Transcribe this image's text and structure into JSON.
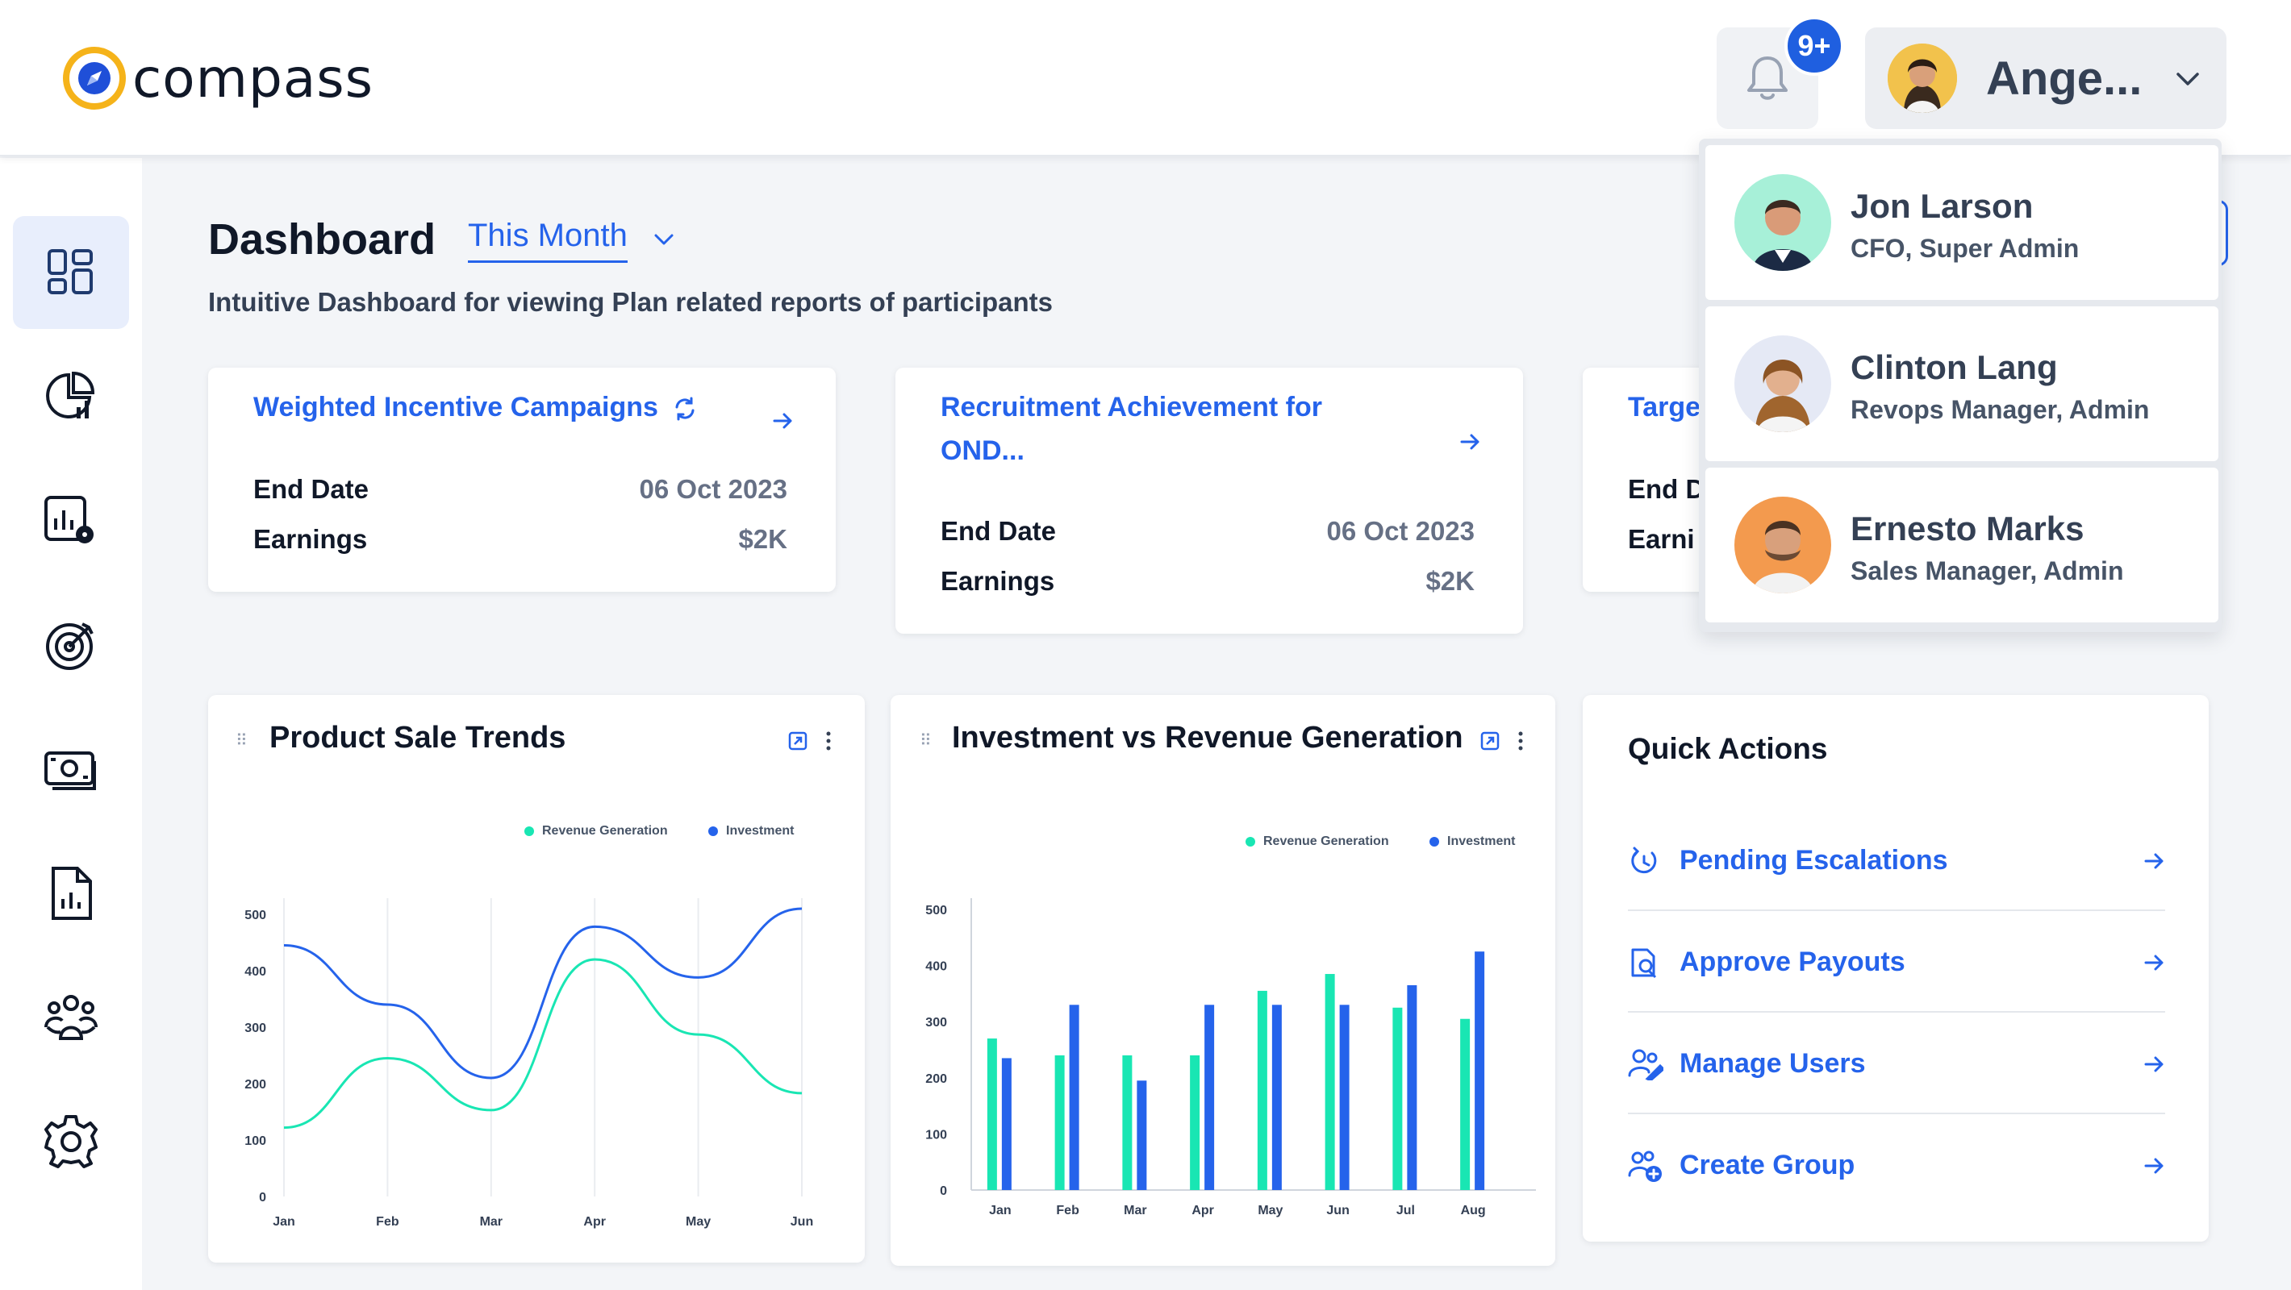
{
  "app": {
    "logo_text": "compass",
    "brand_color": "#2563eb",
    "accent_color": "#19e6b3"
  },
  "header": {
    "notifications_badge": "9+",
    "user_name": "Ange..."
  },
  "sidebar": {
    "items": [
      {
        "name": "dashboard",
        "icon": "dashboard-icon",
        "active": true
      },
      {
        "name": "reports",
        "icon": "pie-chart-icon"
      },
      {
        "name": "analytics-settings",
        "icon": "chart-gear-icon"
      },
      {
        "name": "goals",
        "icon": "target-icon"
      },
      {
        "name": "payouts",
        "icon": "money-icon"
      },
      {
        "name": "documents",
        "icon": "document-chart-icon"
      },
      {
        "name": "users",
        "icon": "team-icon"
      },
      {
        "name": "settings",
        "icon": "gear-icon"
      }
    ]
  },
  "page": {
    "title": "Dashboard",
    "period": "This Month",
    "subtitle": "Intuitive Dashboard for viewing Plan related reports of participants"
  },
  "campaigns": [
    {
      "title": "Weighted Incentive Campaigns",
      "end_date_label": "End Date",
      "end_date": "06 Oct 2023",
      "earnings_label": "Earnings",
      "earnings": "$2K"
    },
    {
      "title_line1": "Recruitment Achievement for",
      "title_line2": "OND...",
      "end_date_label": "End Date",
      "end_date": "06 Oct 2023",
      "earnings_label": "Earnings",
      "earnings": "$2K"
    },
    {
      "title": "Targe",
      "end_date_label": "End D",
      "earnings_label": "Earni"
    }
  ],
  "product_sale_trends": {
    "title": "Product Sale Trends",
    "chart_data": {
      "type": "line",
      "categories": [
        "Jan",
        "Feb",
        "Mar",
        "Apr",
        "May",
        "Jun"
      ],
      "series": [
        {
          "name": "Revenue Generation",
          "color": "#19e6b3",
          "values": [
            122,
            245,
            153,
            420,
            287,
            183
          ]
        },
        {
          "name": "Investment",
          "color": "#2563eb",
          "values": [
            445,
            340,
            210,
            478,
            388,
            510
          ]
        }
      ],
      "ylim": [
        0,
        500
      ],
      "yticks": [
        0,
        100,
        200,
        300,
        400,
        500
      ],
      "grid": true,
      "legend": "top-right"
    }
  },
  "investment_vs_revenue": {
    "title": "Investment vs Revenue Generation",
    "chart_data": {
      "type": "bar",
      "categories": [
        "Jan",
        "Feb",
        "Mar",
        "Apr",
        "May",
        "Jun",
        "Jul",
        "Aug"
      ],
      "series": [
        {
          "name": "Revenue Generation",
          "color": "#19e6b3",
          "values": [
            270,
            240,
            240,
            240,
            355,
            385,
            325,
            305
          ]
        },
        {
          "name": "Investment",
          "color": "#2563eb",
          "values": [
            235,
            330,
            195,
            330,
            330,
            330,
            365,
            425
          ]
        }
      ],
      "ylim": [
        0,
        500
      ],
      "yticks": [
        0,
        100,
        200,
        300,
        400,
        500
      ],
      "legend": "top-right"
    }
  },
  "quick_actions": {
    "title": "Quick Actions",
    "items": [
      {
        "label": "Pending Escalations",
        "icon": "escalation-icon"
      },
      {
        "label": "Approve Payouts",
        "icon": "approve-doc-icon"
      },
      {
        "label": "Manage Users",
        "icon": "manage-users-icon"
      },
      {
        "label": "Create Group",
        "icon": "add-group-icon"
      }
    ]
  },
  "user_dropdown": {
    "users": [
      {
        "name": "Jon Larson",
        "role": "CFO, Super Admin",
        "avatar_bg": "#a7f0d8"
      },
      {
        "name": "Clinton Lang",
        "role": "Revops Manager, Admin",
        "avatar_bg": "#e5e9f5"
      },
      {
        "name": "Ernesto Marks",
        "role": "Sales Manager, Admin",
        "avatar_bg": "#f39a4e"
      }
    ]
  }
}
